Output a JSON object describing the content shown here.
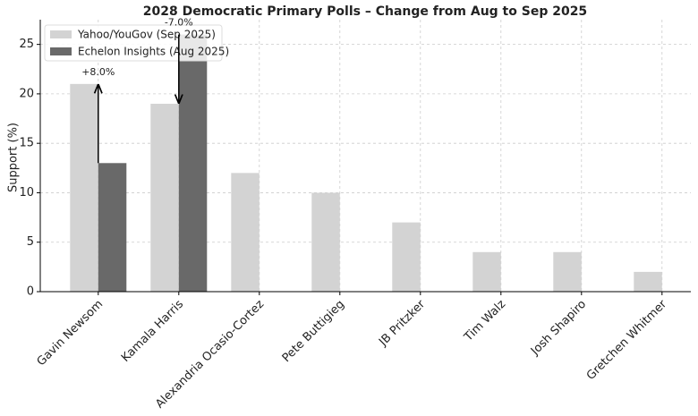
{
  "chart_data": {
    "type": "bar",
    "title": "2028 Democratic Primary Polls – Change from Aug to Sep 2025",
    "y_label": "Support (%)",
    "categories": [
      "Gavin Newsom",
      "Kamala Harris",
      "Alexandria Ocasio-Cortez",
      "Pete Buttigieg",
      "JB Pritzker",
      "Tim Walz",
      "Josh Shapiro",
      "Gretchen Whitmer"
    ],
    "series": [
      {
        "name": "Yahoo/YouGov (Sep 2025)",
        "color": "#d3d3d3",
        "values": [
          21,
          19,
          12,
          10,
          7,
          4,
          4,
          2
        ]
      },
      {
        "name": "Echelon Insights (Aug 2025)",
        "color": "#696969",
        "values": [
          13,
          26,
          null,
          null,
          null,
          null,
          null,
          null
        ]
      }
    ],
    "annotations": [
      "+8.0%",
      "-7.0%"
    ],
    "ylim": [
      0,
      27.5
    ],
    "yticks": [
      0,
      5,
      10,
      15,
      20,
      25
    ],
    "grid": true,
    "legend": "upper left"
  }
}
